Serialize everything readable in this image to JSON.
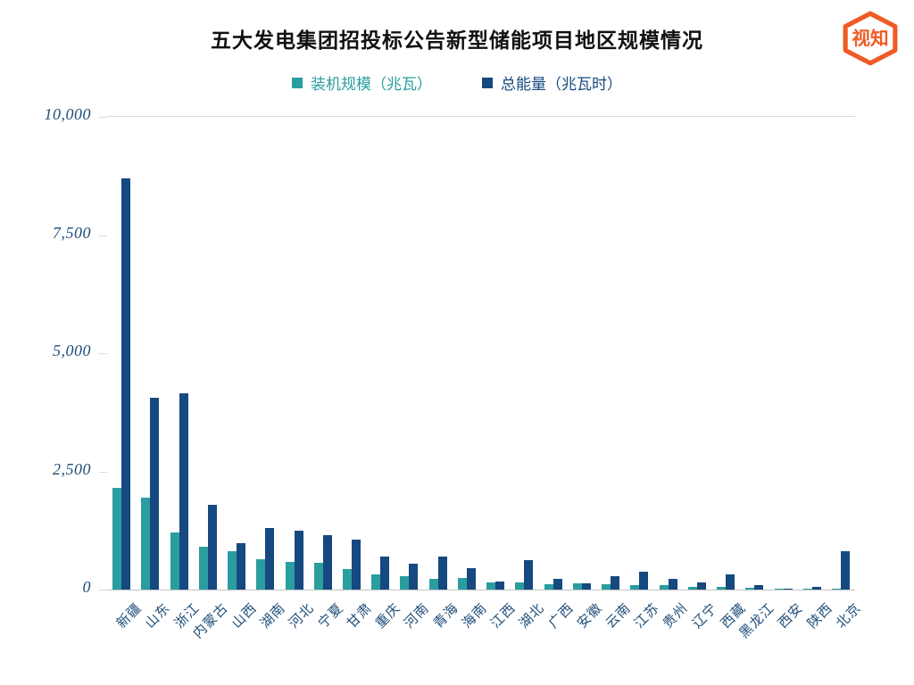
{
  "page": {
    "title": "五大发电集团招投标公告新型储能项目地区规模情况"
  },
  "logo": {
    "text": "视知",
    "color": "#F15A24"
  },
  "legend": [
    {
      "label": "装机规模（兆瓦）",
      "color": "#2A9D9F"
    },
    {
      "label": "总能量（兆瓦时）",
      "color": "#15497F"
    }
  ],
  "chart_data": {
    "type": "bar",
    "title": "五大发电集团招投标公告新型储能项目地区规模情况",
    "categories": [
      "新疆",
      "山东",
      "浙江",
      "内蒙古",
      "山西",
      "湖南",
      "河北",
      "宁夏",
      "甘肃",
      "重庆",
      "河南",
      "青海",
      "海南",
      "江西",
      "湖北",
      "广西",
      "安徽",
      "云南",
      "江苏",
      "贵州",
      "辽宁",
      "西藏",
      "黑龙江",
      "西安",
      "陕西",
      "北京"
    ],
    "series": [
      {
        "name": "装机规模（兆瓦）",
        "color": "#2A9D9F",
        "values": [
          2150,
          1950,
          1200,
          900,
          820,
          650,
          580,
          570,
          430,
          330,
          280,
          230,
          240,
          160,
          150,
          120,
          130,
          110,
          100,
          90,
          60,
          50,
          40,
          20,
          20,
          15
        ]
      },
      {
        "name": "总能量（兆瓦时）",
        "color": "#15497F",
        "values": [
          8700,
          4050,
          4150,
          1800,
          980,
          1300,
          1250,
          1150,
          1050,
          700,
          550,
          700,
          450,
          170,
          620,
          230,
          130,
          280,
          380,
          230,
          160,
          330,
          90,
          25,
          50,
          820
        ]
      }
    ],
    "xlabel": "",
    "ylabel": "",
    "ylim": [
      0,
      10000
    ],
    "yticks": [
      0,
      2500,
      5000,
      7500,
      10000
    ],
    "ytick_labels": [
      "0",
      "2,500",
      "5,000",
      "7,500",
      "10,000"
    ],
    "grid": "top-line-and-baseline",
    "legend_position": "top"
  }
}
